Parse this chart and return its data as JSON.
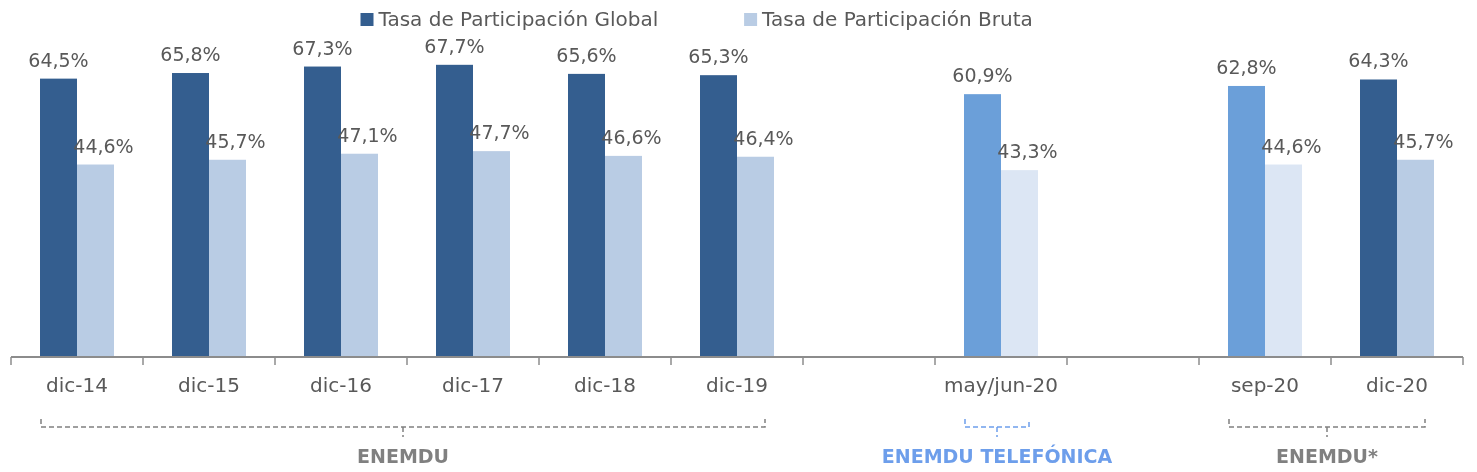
{
  "chart_data": {
    "type": "bar",
    "categories": [
      "dic-14",
      "dic-15",
      "dic-16",
      "dic-17",
      "dic-18",
      "dic-19",
      null,
      "may/jun-20",
      null,
      "sep-20",
      "dic-20"
    ],
    "series": [
      {
        "name": "Tasa de Participación Global",
        "color": "#345e8f",
        "colors": [
          "#345e8f",
          "#345e8f",
          "#345e8f",
          "#345e8f",
          "#345e8f",
          "#345e8f",
          null,
          "#6b9fd9",
          null,
          "#6b9fd9",
          "#345e8f"
        ],
        "values": [
          64.5,
          65.8,
          67.3,
          67.7,
          65.6,
          65.3,
          null,
          60.9,
          null,
          62.8,
          64.3
        ],
        "value_labels": [
          "64,5%",
          "65,8%",
          "67,3%",
          "67,7%",
          "65,6%",
          "65,3%",
          null,
          "60,9%",
          null,
          "62,8%",
          "64,3%"
        ]
      },
      {
        "name": "Tasa de Participación Bruta",
        "color": "#b9cce4",
        "colors": [
          "#b9cce4",
          "#b9cce4",
          "#b9cce4",
          "#b9cce4",
          "#b9cce4",
          "#b9cce4",
          null,
          "#dce6f4",
          null,
          "#dce6f4",
          "#b9cce4"
        ],
        "values": [
          44.6,
          45.7,
          47.1,
          47.7,
          46.6,
          46.4,
          null,
          43.3,
          null,
          44.6,
          45.7
        ],
        "value_labels": [
          "44,6%",
          "45,7%",
          "47,1%",
          "47,7%",
          "46,6%",
          "46,4%",
          null,
          "43,3%",
          null,
          "44,6%",
          "45,7%"
        ]
      }
    ],
    "legend": "top",
    "annotations": [
      "ENEMDU",
      "ENEMDU TELEFÓNICA",
      "ENEMDU*"
    ]
  }
}
